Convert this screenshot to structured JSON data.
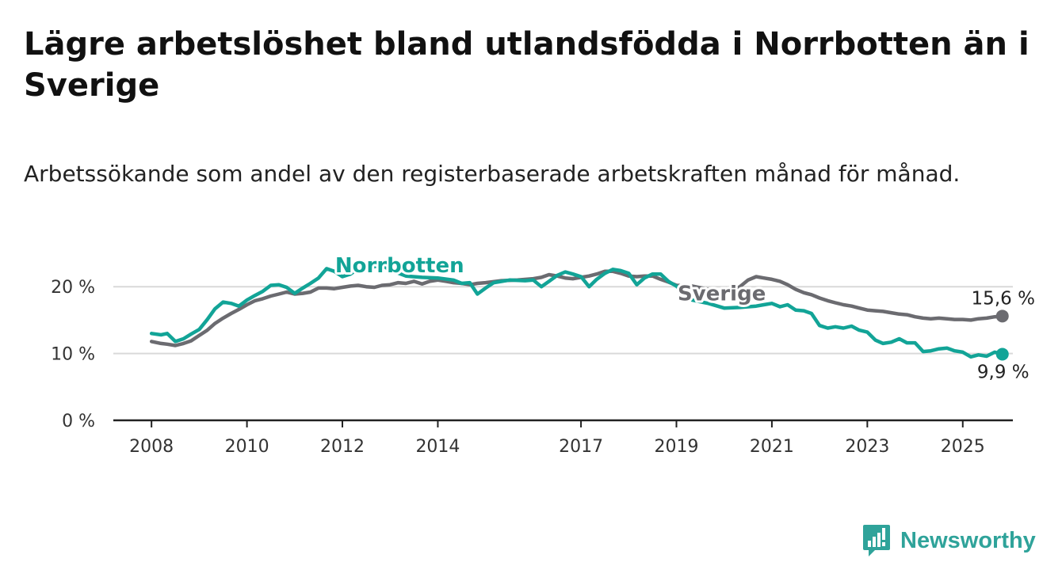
{
  "title": "Lägre arbetslöshet bland utlandsfödda i Norrbotten än i Sverige",
  "subtitle": "Arbetssökande som andel av den registerbaserade arbetskraften månad för månad.",
  "brand": {
    "name": "Newsworthy",
    "color": "#2fa39a",
    "icon": "newsworthy-logo-icon"
  },
  "chart_data": {
    "type": "line",
    "title": "Lägre arbetslöshet bland utlandsfödda i Norrbotten än i Sverige",
    "subtitle": "Arbetssökande som andel av den registerbaserade arbetskraften månad för månad.",
    "xlabel": "",
    "ylabel": "",
    "x_ticks": [
      {
        "label": "2008",
        "value": 2008.0
      },
      {
        "label": "2010",
        "value": 2010.0
      },
      {
        "label": "2012",
        "value": 2012.0
      },
      {
        "label": "2014",
        "value": 2014.0
      },
      {
        "label": "2017",
        "value": 2017.0
      },
      {
        "label": "2019",
        "value": 2019.0
      },
      {
        "label": "2021",
        "value": 2021.0
      },
      {
        "label": "2023",
        "value": 2023.0
      },
      {
        "label": "2025",
        "value": 2025.0
      }
    ],
    "y_ticks": [
      {
        "label": "0 %",
        "value": 0
      },
      {
        "label": "10 %",
        "value": 10
      },
      {
        "label": "20 %",
        "value": 20
      }
    ],
    "xlim": [
      2007.2,
      2026.05
    ],
    "ylim": [
      0,
      25
    ],
    "grid": true,
    "legend": "inline labels",
    "series": [
      {
        "name": "Norrbotten",
        "color": "#12a497",
        "label_at": [
          2013.2,
          23.2
        ],
        "end_label": "9,9 %",
        "points": [
          [
            2008.0,
            13.0
          ],
          [
            2008.2,
            12.8
          ],
          [
            2008.33,
            13.0
          ],
          [
            2008.5,
            11.8
          ],
          [
            2008.67,
            12.2
          ],
          [
            2008.83,
            12.9
          ],
          [
            2009.0,
            13.6
          ],
          [
            2009.17,
            15.1
          ],
          [
            2009.33,
            16.7
          ],
          [
            2009.5,
            17.7
          ],
          [
            2009.67,
            17.5
          ],
          [
            2009.83,
            17.1
          ],
          [
            2010.0,
            18.0
          ],
          [
            2010.17,
            18.7
          ],
          [
            2010.33,
            19.3
          ],
          [
            2010.5,
            20.2
          ],
          [
            2010.67,
            20.3
          ],
          [
            2010.83,
            19.9
          ],
          [
            2011.0,
            19.0
          ],
          [
            2011.17,
            19.8
          ],
          [
            2011.33,
            20.5
          ],
          [
            2011.5,
            21.3
          ],
          [
            2011.67,
            22.7
          ],
          [
            2011.83,
            22.3
          ],
          [
            2012.0,
            21.5
          ],
          [
            2012.17,
            21.9
          ],
          [
            2012.33,
            22.7
          ],
          [
            2012.5,
            23.2
          ],
          [
            2012.67,
            23.0
          ],
          [
            2012.83,
            23.2
          ],
          [
            2013.0,
            22.5
          ],
          [
            2013.33,
            21.6
          ],
          [
            2013.67,
            21.4
          ],
          [
            2014.0,
            21.3
          ],
          [
            2014.33,
            21.0
          ],
          [
            2014.5,
            20.5
          ],
          [
            2014.67,
            20.6
          ],
          [
            2014.83,
            18.9
          ],
          [
            2015.0,
            19.8
          ],
          [
            2015.17,
            20.6
          ],
          [
            2015.5,
            21.0
          ],
          [
            2015.83,
            20.9
          ],
          [
            2016.0,
            21.0
          ],
          [
            2016.17,
            20.0
          ],
          [
            2016.33,
            20.8
          ],
          [
            2016.5,
            21.7
          ],
          [
            2016.67,
            22.2
          ],
          [
            2016.83,
            21.9
          ],
          [
            2017.0,
            21.5
          ],
          [
            2017.17,
            20.0
          ],
          [
            2017.33,
            21.1
          ],
          [
            2017.5,
            22.0
          ],
          [
            2017.67,
            22.6
          ],
          [
            2017.83,
            22.4
          ],
          [
            2018.0,
            22.0
          ],
          [
            2018.17,
            20.3
          ],
          [
            2018.33,
            21.3
          ],
          [
            2018.5,
            21.9
          ],
          [
            2018.67,
            21.9
          ],
          [
            2018.83,
            20.8
          ],
          [
            2019.0,
            20.1
          ],
          [
            2019.33,
            18.0
          ],
          [
            2019.67,
            17.5
          ],
          [
            2020.0,
            16.8
          ],
          [
            2020.33,
            16.9
          ],
          [
            2020.67,
            17.1
          ],
          [
            2020.83,
            17.3
          ],
          [
            2021.0,
            17.5
          ],
          [
            2021.17,
            17.0
          ],
          [
            2021.33,
            17.3
          ],
          [
            2021.5,
            16.5
          ],
          [
            2021.67,
            16.4
          ],
          [
            2021.83,
            16.0
          ],
          [
            2022.0,
            14.2
          ],
          [
            2022.17,
            13.8
          ],
          [
            2022.33,
            14.0
          ],
          [
            2022.5,
            13.8
          ],
          [
            2022.67,
            14.1
          ],
          [
            2022.83,
            13.5
          ],
          [
            2023.0,
            13.2
          ],
          [
            2023.17,
            12.0
          ],
          [
            2023.33,
            11.5
          ],
          [
            2023.5,
            11.7
          ],
          [
            2023.67,
            12.2
          ],
          [
            2023.83,
            11.6
          ],
          [
            2024.0,
            11.6
          ],
          [
            2024.17,
            10.3
          ],
          [
            2024.33,
            10.4
          ],
          [
            2024.5,
            10.7
          ],
          [
            2024.67,
            10.8
          ],
          [
            2024.83,
            10.4
          ],
          [
            2025.0,
            10.2
          ],
          [
            2025.17,
            9.5
          ],
          [
            2025.33,
            9.8
          ],
          [
            2025.5,
            9.6
          ],
          [
            2025.67,
            10.2
          ],
          [
            2025.83,
            9.9
          ]
        ]
      },
      {
        "name": "Sverige",
        "color": "#6b6b70",
        "label_at": [
          2019.95,
          19.0
        ],
        "end_label": "15,6 %",
        "points": [
          [
            2008.0,
            11.8
          ],
          [
            2008.2,
            11.5
          ],
          [
            2008.33,
            11.4
          ],
          [
            2008.5,
            11.2
          ],
          [
            2008.67,
            11.5
          ],
          [
            2008.83,
            11.9
          ],
          [
            2009.0,
            12.7
          ],
          [
            2009.17,
            13.5
          ],
          [
            2009.33,
            14.5
          ],
          [
            2009.5,
            15.3
          ],
          [
            2009.67,
            16.0
          ],
          [
            2009.83,
            16.6
          ],
          [
            2010.0,
            17.3
          ],
          [
            2010.17,
            17.9
          ],
          [
            2010.33,
            18.2
          ],
          [
            2010.5,
            18.6
          ],
          [
            2010.67,
            18.9
          ],
          [
            2010.83,
            19.2
          ],
          [
            2011.0,
            18.9
          ],
          [
            2011.17,
            19.0
          ],
          [
            2011.33,
            19.2
          ],
          [
            2011.5,
            19.8
          ],
          [
            2011.67,
            19.8
          ],
          [
            2011.83,
            19.7
          ],
          [
            2012.0,
            19.9
          ],
          [
            2012.17,
            20.1
          ],
          [
            2012.33,
            20.2
          ],
          [
            2012.5,
            20.0
          ],
          [
            2012.67,
            19.9
          ],
          [
            2012.83,
            20.2
          ],
          [
            2013.0,
            20.3
          ],
          [
            2013.17,
            20.6
          ],
          [
            2013.33,
            20.5
          ],
          [
            2013.5,
            20.8
          ],
          [
            2013.67,
            20.4
          ],
          [
            2013.83,
            20.8
          ],
          [
            2014.0,
            21.0
          ],
          [
            2014.17,
            20.8
          ],
          [
            2014.33,
            20.6
          ],
          [
            2014.5,
            20.5
          ],
          [
            2014.67,
            20.3
          ],
          [
            2014.83,
            20.5
          ],
          [
            2015.0,
            20.6
          ],
          [
            2015.33,
            20.9
          ],
          [
            2015.67,
            21.0
          ],
          [
            2016.0,
            21.2
          ],
          [
            2016.17,
            21.4
          ],
          [
            2016.33,
            21.8
          ],
          [
            2016.5,
            21.6
          ],
          [
            2016.67,
            21.3
          ],
          [
            2016.83,
            21.2
          ],
          [
            2017.0,
            21.4
          ],
          [
            2017.17,
            21.6
          ],
          [
            2017.33,
            21.9
          ],
          [
            2017.5,
            22.3
          ],
          [
            2017.67,
            22.3
          ],
          [
            2017.83,
            22.0
          ],
          [
            2018.0,
            21.6
          ],
          [
            2018.17,
            21.5
          ],
          [
            2018.33,
            21.6
          ],
          [
            2018.5,
            21.6
          ],
          [
            2018.67,
            21.1
          ],
          [
            2018.83,
            20.7
          ],
          [
            2019.0,
            20.2
          ],
          [
            2019.33,
            20.1
          ],
          [
            2019.67,
            19.6
          ],
          [
            2020.0,
            19.0
          ],
          [
            2020.17,
            19.3
          ],
          [
            2020.33,
            20.0
          ],
          [
            2020.5,
            21.0
          ],
          [
            2020.67,
            21.5
          ],
          [
            2020.83,
            21.3
          ],
          [
            2021.0,
            21.1
          ],
          [
            2021.17,
            20.8
          ],
          [
            2021.33,
            20.3
          ],
          [
            2021.5,
            19.6
          ],
          [
            2021.67,
            19.1
          ],
          [
            2021.83,
            18.8
          ],
          [
            2022.0,
            18.3
          ],
          [
            2022.17,
            17.9
          ],
          [
            2022.33,
            17.6
          ],
          [
            2022.5,
            17.3
          ],
          [
            2022.67,
            17.1
          ],
          [
            2022.83,
            16.8
          ],
          [
            2023.0,
            16.5
          ],
          [
            2023.17,
            16.4
          ],
          [
            2023.33,
            16.3
          ],
          [
            2023.5,
            16.1
          ],
          [
            2023.67,
            15.9
          ],
          [
            2023.83,
            15.8
          ],
          [
            2024.0,
            15.5
          ],
          [
            2024.17,
            15.3
          ],
          [
            2024.33,
            15.2
          ],
          [
            2024.5,
            15.3
          ],
          [
            2024.67,
            15.2
          ],
          [
            2024.83,
            15.1
          ],
          [
            2025.0,
            15.1
          ],
          [
            2025.17,
            15.0
          ],
          [
            2025.33,
            15.2
          ],
          [
            2025.5,
            15.3
          ],
          [
            2025.67,
            15.5
          ],
          [
            2025.83,
            15.6
          ]
        ]
      }
    ]
  }
}
